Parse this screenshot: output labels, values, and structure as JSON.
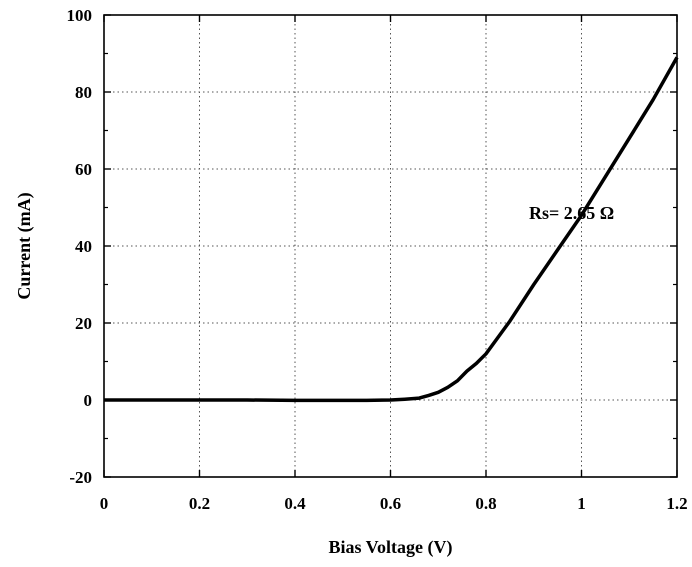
{
  "chart_data": {
    "type": "line",
    "title": "",
    "xlabel": "Bias Voltage (V)",
    "ylabel": "Current (mA)",
    "xlim": [
      0,
      1.2
    ],
    "ylim": [
      -20,
      100
    ],
    "x_ticks": [
      0,
      0.2,
      0.4,
      0.6,
      0.8,
      1,
      1.2
    ],
    "x_tick_labels": [
      "0",
      "0.2",
      "0.4",
      "0.6",
      "0.8",
      "1",
      "1.2"
    ],
    "y_ticks": [
      -20,
      0,
      20,
      40,
      60,
      80,
      100
    ],
    "y_tick_labels": [
      "-20",
      "0",
      "20",
      "40",
      "60",
      "80",
      "100"
    ],
    "grid": "dotted",
    "annotation": {
      "text": "Rs= 2.65 Ω",
      "x": 0.89,
      "y": 47
    },
    "series": [
      {
        "x": [
          0,
          0.1,
          0.2,
          0.3,
          0.4,
          0.5,
          0.55,
          0.6,
          0.63,
          0.66,
          0.68,
          0.7,
          0.72,
          0.74,
          0.76,
          0.78,
          0.8,
          0.85,
          0.9,
          0.95,
          1.0,
          1.05,
          1.1,
          1.15,
          1.2
        ],
        "y": [
          0,
          0,
          0,
          0,
          -0.1,
          -0.1,
          -0.1,
          0,
          0.2,
          0.5,
          1.2,
          2,
          3.3,
          5,
          7.5,
          9.5,
          12,
          20.5,
          30,
          39,
          48,
          58,
          68,
          78,
          89
        ]
      }
    ]
  }
}
